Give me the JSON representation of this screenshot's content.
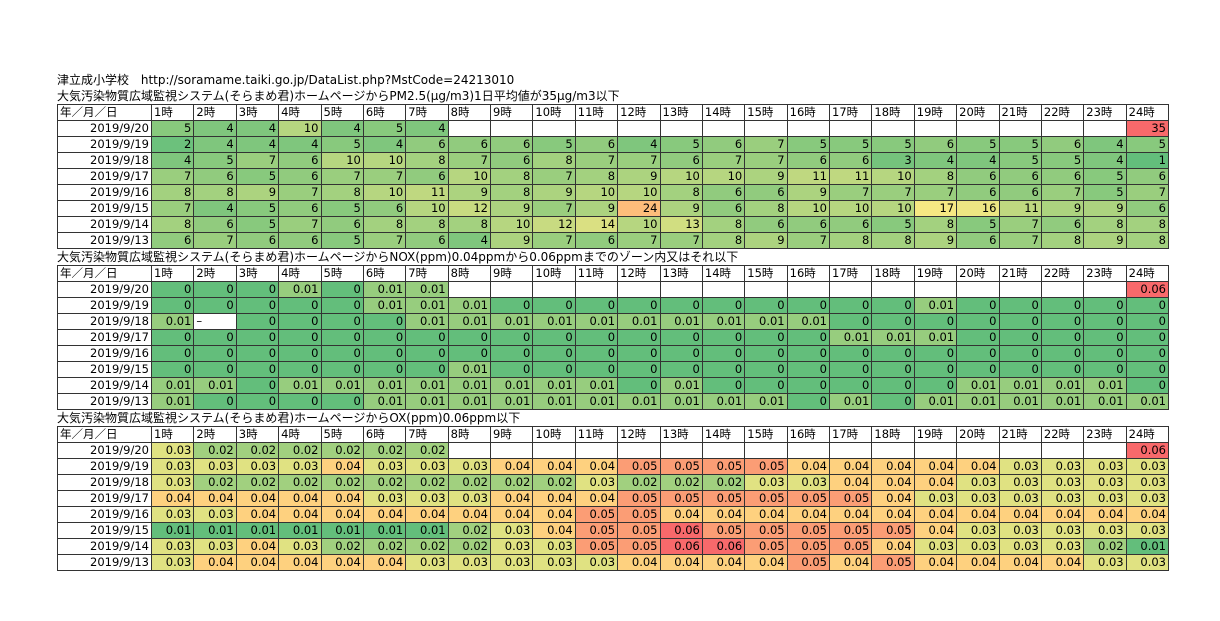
{
  "header": {
    "school": "津立成小学校",
    "url": "http://soramame.taiki.go.jp/DataList.php?MstCode=24213010"
  },
  "hour_headers": [
    "年／月／日",
    "1時",
    "2時",
    "3時",
    "4時",
    "5時",
    "6時",
    "7時",
    "8時",
    "9時",
    "10時",
    "11時",
    "12時",
    "13時",
    "14時",
    "15時",
    "16時",
    "17時",
    "18時",
    "19時",
    "20時",
    "21時",
    "22時",
    "23時",
    "24時"
  ],
  "sections": [
    {
      "title": "大気汚染物質広域監視システム(そらまめ君)ホームページからPM2.5(μg/m3)1日平均値が35μg/m3以下",
      "type": "pm",
      "rows": [
        {
          "date": "2019/9/20",
          "values": [
            "5",
            "4",
            "4",
            "10",
            "4",
            "5",
            "4",
            "",
            "",
            "",
            "",
            "",
            "",
            "",
            "",
            "",
            "",
            "",
            "",
            "",
            "",
            "",
            "",
            "35"
          ]
        },
        {
          "date": "2019/9/19",
          "values": [
            "2",
            "4",
            "4",
            "4",
            "5",
            "4",
            "6",
            "6",
            "6",
            "5",
            "6",
            "4",
            "5",
            "6",
            "7",
            "5",
            "5",
            "5",
            "6",
            "5",
            "5",
            "6",
            "4",
            "5"
          ]
        },
        {
          "date": "2019/9/18",
          "values": [
            "4",
            "5",
            "7",
            "6",
            "10",
            "10",
            "8",
            "7",
            "6",
            "8",
            "7",
            "7",
            "6",
            "7",
            "7",
            "6",
            "6",
            "3",
            "4",
            "4",
            "5",
            "5",
            "4",
            "1"
          ]
        },
        {
          "date": "2019/9/17",
          "values": [
            "7",
            "6",
            "5",
            "6",
            "7",
            "7",
            "6",
            "10",
            "8",
            "7",
            "8",
            "9",
            "10",
            "10",
            "9",
            "11",
            "11",
            "10",
            "8",
            "6",
            "6",
            "6",
            "5",
            "6"
          ]
        },
        {
          "date": "2019/9/16",
          "values": [
            "8",
            "8",
            "9",
            "7",
            "8",
            "10",
            "11",
            "9",
            "8",
            "9",
            "10",
            "10",
            "8",
            "6",
            "6",
            "9",
            "7",
            "7",
            "7",
            "6",
            "6",
            "7",
            "5",
            "7"
          ]
        },
        {
          "date": "2019/9/15",
          "values": [
            "7",
            "4",
            "5",
            "6",
            "5",
            "6",
            "10",
            "12",
            "9",
            "7",
            "9",
            "24",
            "9",
            "6",
            "8",
            "10",
            "10",
            "10",
            "17",
            "16",
            "11",
            "9",
            "9",
            "6"
          ]
        },
        {
          "date": "2019/9/14",
          "values": [
            "8",
            "6",
            "5",
            "7",
            "6",
            "8",
            "8",
            "8",
            "10",
            "12",
            "14",
            "10",
            "13",
            "8",
            "6",
            "6",
            "6",
            "5",
            "8",
            "5",
            "7",
            "6",
            "8",
            "8"
          ]
        },
        {
          "date": "2019/9/13",
          "values": [
            "6",
            "7",
            "6",
            "6",
            "5",
            "7",
            "6",
            "4",
            "9",
            "7",
            "6",
            "7",
            "7",
            "8",
            "9",
            "7",
            "8",
            "8",
            "9",
            "6",
            "7",
            "8",
            "9",
            "8"
          ]
        }
      ]
    },
    {
      "title": "大気汚染物質広域監視システム(そらまめ君)ホームページからNOX(ppm)0.04ppmから0.06ppmまでのゾーン内又はそれ以下",
      "type": "nox",
      "rows": [
        {
          "date": "2019/9/20",
          "values": [
            "0",
            "0",
            "0",
            "0.01",
            "0",
            "0.01",
            "0.01",
            "",
            "",
            "",
            "",
            "",
            "",
            "",
            "",
            "",
            "",
            "",
            "",
            "",
            "",
            "",
            "",
            "0.06"
          ]
        },
        {
          "date": "2019/9/19",
          "values": [
            "0",
            "0",
            "0",
            "0",
            "0",
            "0.01",
            "0.01",
            "0.01",
            "0",
            "0",
            "0",
            "0",
            "0",
            "0",
            "0",
            "0",
            "0",
            "0",
            "0.01",
            "0",
            "0",
            "0",
            "0",
            "0"
          ]
        },
        {
          "date": "2019/9/18",
          "values": [
            "0.01",
            "–",
            "0",
            "0",
            "0",
            "0",
            "0.01",
            "0.01",
            "0.01",
            "0.01",
            "0.01",
            "0.01",
            "0.01",
            "0.01",
            "0.01",
            "0.01",
            "0",
            "0",
            "0",
            "0",
            "0",
            "0",
            "0",
            "0"
          ]
        },
        {
          "date": "2019/9/17",
          "values": [
            "0",
            "0",
            "0",
            "0",
            "0",
            "0",
            "0",
            "0",
            "0",
            "0",
            "0",
            "0",
            "0",
            "0",
            "0",
            "0",
            "0.01",
            "0.01",
            "0.01",
            "0",
            "0",
            "0",
            "0",
            "0"
          ]
        },
        {
          "date": "2019/9/16",
          "values": [
            "0",
            "0",
            "0",
            "0",
            "0",
            "0",
            "0",
            "0",
            "0",
            "0",
            "0",
            "0",
            "0",
            "0",
            "0",
            "0",
            "0",
            "0",
            "0",
            "0",
            "0",
            "0",
            "0",
            "0"
          ]
        },
        {
          "date": "2019/9/15",
          "values": [
            "0",
            "0",
            "0",
            "0",
            "0",
            "0",
            "0",
            "0.01",
            "0",
            "0",
            "0",
            "0",
            "0",
            "0",
            "0",
            "0",
            "0",
            "0",
            "0",
            "0",
            "0",
            "0",
            "0",
            "0"
          ]
        },
        {
          "date": "2019/9/14",
          "values": [
            "0.01",
            "0.01",
            "0",
            "0.01",
            "0.01",
            "0.01",
            "0.01",
            "0.01",
            "0.01",
            "0.01",
            "0.01",
            "0",
            "0.01",
            "0",
            "0",
            "0",
            "0",
            "0",
            "0",
            "0.01",
            "0.01",
            "0.01",
            "0.01",
            "0"
          ]
        },
        {
          "date": "2019/9/13",
          "values": [
            "0.01",
            "0",
            "0",
            "0",
            "0",
            "0.01",
            "0.01",
            "0.01",
            "0.01",
            "0.01",
            "0.01",
            "0.01",
            "0.01",
            "0.01",
            "0.01",
            "0",
            "0.01",
            "0",
            "0.01",
            "0.01",
            "0.01",
            "0.01",
            "0.01",
            "0.01"
          ]
        }
      ]
    },
    {
      "title": "大気汚染物質広域監視システム(そらまめ君)ホームページからOX(ppm)0.06ppm以下",
      "type": "ox",
      "rows": [
        {
          "date": "2019/9/20",
          "values": [
            "0.03",
            "0.02",
            "0.02",
            "0.02",
            "0.02",
            "0.02",
            "0.02",
            "",
            "",
            "",
            "",
            "",
            "",
            "",
            "",
            "",
            "",
            "",
            "",
            "",
            "",
            "",
            "",
            "0.06"
          ]
        },
        {
          "date": "2019/9/19",
          "values": [
            "0.03",
            "0.03",
            "0.03",
            "0.03",
            "0.04",
            "0.03",
            "0.03",
            "0.03",
            "0.04",
            "0.04",
            "0.04",
            "0.05",
            "0.05",
            "0.05",
            "0.05",
            "0.04",
            "0.04",
            "0.04",
            "0.04",
            "0.04",
            "0.03",
            "0.03",
            "0.03",
            "0.03"
          ]
        },
        {
          "date": "2019/9/18",
          "values": [
            "0.03",
            "0.02",
            "0.02",
            "0.02",
            "0.02",
            "0.02",
            "0.02",
            "0.02",
            "0.02",
            "0.02",
            "0.03",
            "0.02",
            "0.02",
            "0.02",
            "0.03",
            "0.03",
            "0.04",
            "0.04",
            "0.04",
            "0.03",
            "0.03",
            "0.03",
            "0.03",
            "0.03"
          ]
        },
        {
          "date": "2019/9/17",
          "values": [
            "0.04",
            "0.04",
            "0.04",
            "0.04",
            "0.04",
            "0.03",
            "0.03",
            "0.03",
            "0.04",
            "0.04",
            "0.04",
            "0.05",
            "0.05",
            "0.05",
            "0.05",
            "0.05",
            "0.05",
            "0.04",
            "0.03",
            "0.03",
            "0.03",
            "0.03",
            "0.03",
            "0.03"
          ]
        },
        {
          "date": "2019/9/16",
          "values": [
            "0.03",
            "0.03",
            "0.04",
            "0.04",
            "0.04",
            "0.04",
            "0.04",
            "0.04",
            "0.04",
            "0.04",
            "0.05",
            "0.05",
            "0.04",
            "0.04",
            "0.04",
            "0.04",
            "0.04",
            "0.04",
            "0.04",
            "0.04",
            "0.04",
            "0.04",
            "0.04",
            "0.04"
          ]
        },
        {
          "date": "2019/9/15",
          "values": [
            "0.01",
            "0.01",
            "0.01",
            "0.01",
            "0.01",
            "0.01",
            "0.01",
            "0.02",
            "0.03",
            "0.04",
            "0.05",
            "0.05",
            "0.06",
            "0.05",
            "0.05",
            "0.05",
            "0.05",
            "0.05",
            "0.04",
            "0.03",
            "0.03",
            "0.03",
            "0.03",
            "0.03"
          ]
        },
        {
          "date": "2019/9/14",
          "values": [
            "0.03",
            "0.03",
            "0.04",
            "0.03",
            "0.02",
            "0.02",
            "0.02",
            "0.02",
            "0.03",
            "0.03",
            "0.05",
            "0.05",
            "0.06",
            "0.06",
            "0.05",
            "0.05",
            "0.05",
            "0.04",
            "0.03",
            "0.03",
            "0.03",
            "0.03",
            "0.02",
            "0.01"
          ]
        },
        {
          "date": "2019/9/13",
          "values": [
            "0.03",
            "0.04",
            "0.04",
            "0.04",
            "0.04",
            "0.04",
            "0.03",
            "0.03",
            "0.03",
            "0.03",
            "0.03",
            "0.04",
            "0.04",
            "0.04",
            "0.04",
            "0.05",
            "0.04",
            "0.05",
            "0.04",
            "0.04",
            "0.04",
            "0.04",
            "0.03",
            "0.03"
          ]
        }
      ]
    }
  ],
  "colors": {
    "scale_low": "#63be7b",
    "scale_mid": "#ffeb84",
    "scale_high": "#f8696b",
    "grid_line": "#333333"
  }
}
